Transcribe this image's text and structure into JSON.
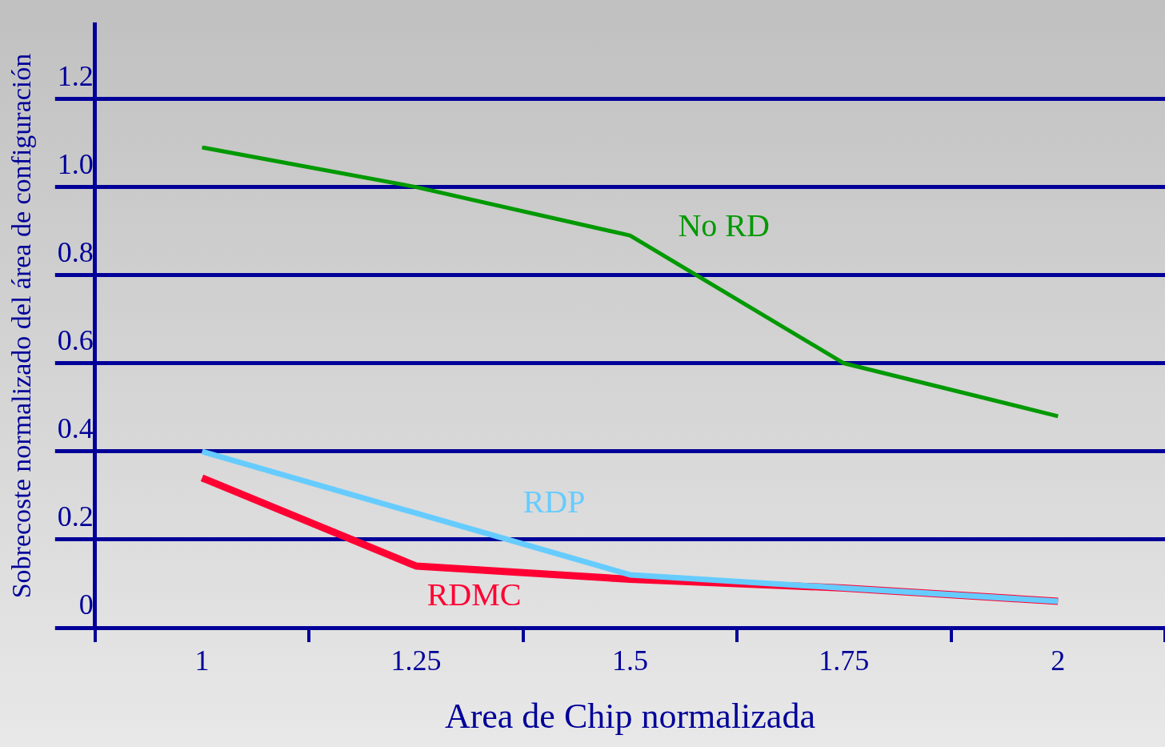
{
  "chart_data": {
    "type": "line",
    "xlabel": "Area de Chip normalizada",
    "ylabel": "Sobrecoste normalizado del área de configuración",
    "categories": [
      "1",
      "1.25",
      "1.5",
      "1.75",
      "2"
    ],
    "series": [
      {
        "name": "No RD",
        "color": "#009900",
        "values": [
          1.09,
          1.0,
          0.89,
          0.6,
          0.48
        ]
      },
      {
        "name": "RDP",
        "color": "#66ccff",
        "values": [
          0.4,
          0.26,
          0.12,
          0.09,
          0.06
        ]
      },
      {
        "name": "RDMC",
        "color": "#ff0033",
        "values": [
          0.34,
          0.14,
          0.11,
          0.09,
          0.06
        ]
      }
    ],
    "ylim": [
      0,
      1.37
    ],
    "yticks": [
      0,
      0.2,
      0.4,
      0.6,
      0.8,
      {
        "value": 1,
        "label": "1.0"
      },
      1.2
    ],
    "grid": "y",
    "legend": false,
    "marker": "none",
    "line_style": "solid"
  }
}
